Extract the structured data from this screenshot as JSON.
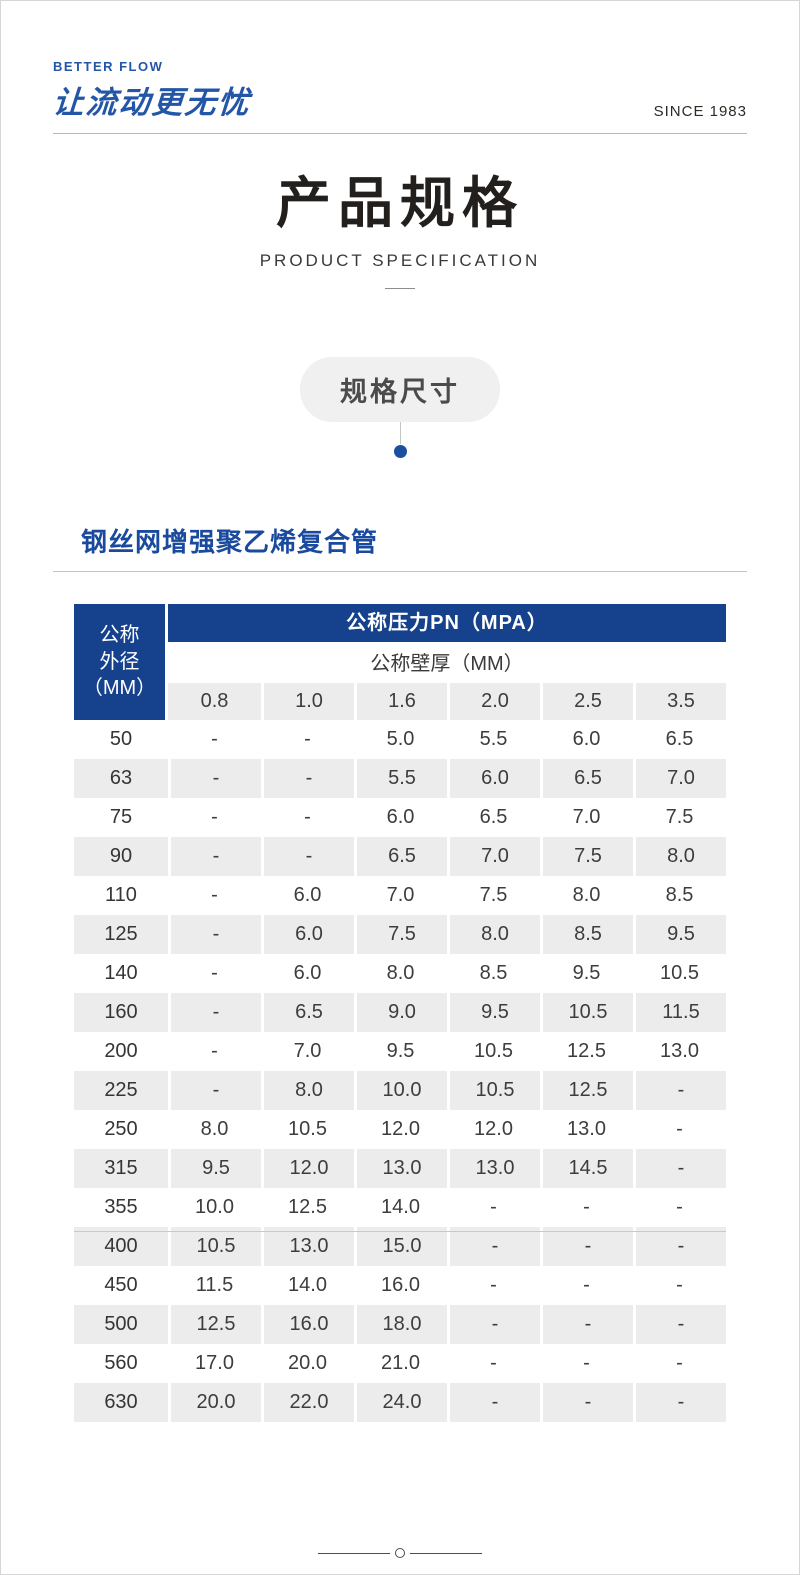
{
  "colors": {
    "accent-blue": "#16418d",
    "logo-blue": "#2456a8",
    "section-blue": "#1a4a9d",
    "dot-blue": "#1b4fa0",
    "row-gray": "#ececec"
  },
  "header": {
    "brand_en": "BETTER FLOW",
    "brand_cn": "让流动更无忧",
    "since": "SINCE 1983"
  },
  "hero": {
    "title": "产品规格",
    "subtitle": "PRODUCT SPECIFICATION"
  },
  "badge": {
    "label": "规格尺寸"
  },
  "section": {
    "title": "钢丝网增强聚乙烯复合管"
  },
  "table": {
    "corner_header": "公称\n外径\n（MM）",
    "pressure_header": "公称压力PN（MPA）",
    "thickness_header": "公称壁厚（MM）",
    "thickness_values": [
      "0.8",
      "1.0",
      "1.6",
      "2.0",
      "2.5",
      "3.5"
    ],
    "split_above_od": "400",
    "rows": [
      {
        "od": "50",
        "values": [
          "-",
          "-",
          "5.0",
          "5.5",
          "6.0",
          "6.5"
        ]
      },
      {
        "od": "63",
        "values": [
          "-",
          "-",
          "5.5",
          "6.0",
          "6.5",
          "7.0"
        ]
      },
      {
        "od": "75",
        "values": [
          "-",
          "-",
          "6.0",
          "6.5",
          "7.0",
          "7.5"
        ]
      },
      {
        "od": "90",
        "values": [
          "-",
          "-",
          "6.5",
          "7.0",
          "7.5",
          "8.0"
        ]
      },
      {
        "od": "110",
        "values": [
          "-",
          "6.0",
          "7.0",
          "7.5",
          "8.0",
          "8.5"
        ]
      },
      {
        "od": "125",
        "values": [
          "-",
          "6.0",
          "7.5",
          "8.0",
          "8.5",
          "9.5"
        ]
      },
      {
        "od": "140",
        "values": [
          "-",
          "6.0",
          "8.0",
          "8.5",
          "9.5",
          "10.5"
        ]
      },
      {
        "od": "160",
        "values": [
          "-",
          "6.5",
          "9.0",
          "9.5",
          "10.5",
          "11.5"
        ]
      },
      {
        "od": "200",
        "values": [
          "-",
          "7.0",
          "9.5",
          "10.5",
          "12.5",
          "13.0"
        ]
      },
      {
        "od": "225",
        "values": [
          "-",
          "8.0",
          "10.0",
          "10.5",
          "12.5",
          "-"
        ]
      },
      {
        "od": "250",
        "values": [
          "8.0",
          "10.5",
          "12.0",
          "12.0",
          "13.0",
          "-"
        ]
      },
      {
        "od": "315",
        "values": [
          "9.5",
          "12.0",
          "13.0",
          "13.0",
          "14.5",
          "-"
        ]
      },
      {
        "od": "355",
        "values": [
          "10.0",
          "12.5",
          "14.0",
          "-",
          "-",
          "-"
        ]
      },
      {
        "od": "400",
        "values": [
          "10.5",
          "13.0",
          "15.0",
          "-",
          "-",
          "-"
        ]
      },
      {
        "od": "450",
        "values": [
          "11.5",
          "14.0",
          "16.0",
          "-",
          "-",
          "-"
        ]
      },
      {
        "od": "500",
        "values": [
          "12.5",
          "16.0",
          "18.0",
          "-",
          "-",
          "-"
        ]
      },
      {
        "od": "560",
        "values": [
          "17.0",
          "20.0",
          "21.0",
          "-",
          "-",
          "-"
        ]
      },
      {
        "od": "630",
        "values": [
          "20.0",
          "22.0",
          "24.0",
          "-",
          "-",
          "-"
        ]
      }
    ]
  }
}
